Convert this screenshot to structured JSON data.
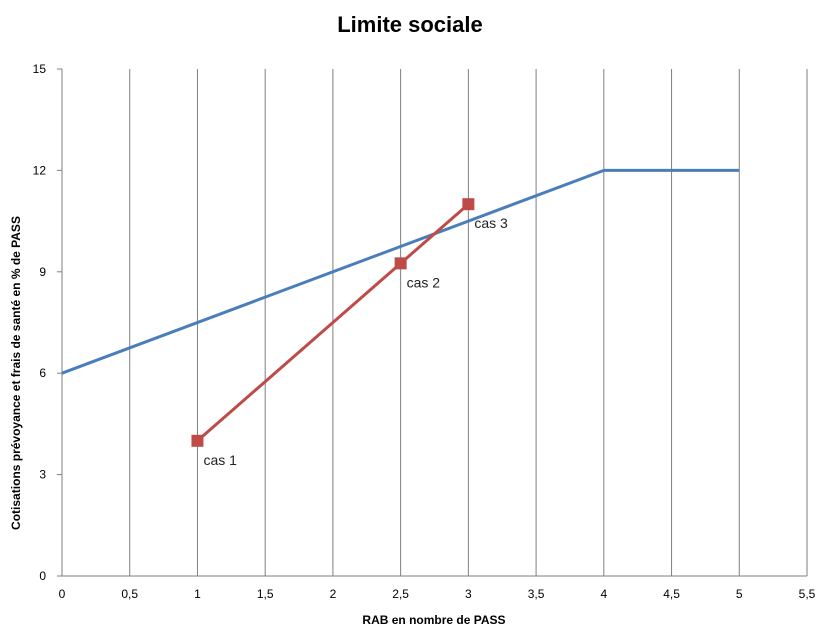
{
  "chart_data": {
    "type": "line",
    "title": "Limite sociale",
    "xlabel": "RAB en nombre de PASS",
    "ylabel": "Cotisations prévoyance et frais de santé en % de PASS",
    "xlim": [
      0,
      5.5
    ],
    "ylim": [
      0,
      15
    ],
    "x_ticks": [
      "0",
      "0,5",
      "1",
      "1,5",
      "2",
      "2,5",
      "3",
      "3,5",
      "4",
      "4,5",
      "5",
      "5,5"
    ],
    "y_ticks": [
      "0",
      "3",
      "6",
      "9",
      "12",
      "15"
    ],
    "grid": {
      "vertical": true,
      "horizontal": false
    },
    "series": [
      {
        "color": "#4a7ebb",
        "marker": "none",
        "points": [
          {
            "x": 0,
            "y": 6
          },
          {
            "x": 4,
            "y": 12
          },
          {
            "x": 5,
            "y": 12
          }
        ]
      },
      {
        "color": "#be4b48",
        "marker": "square",
        "points": [
          {
            "x": 1,
            "y": 4,
            "label": "cas 1"
          },
          {
            "x": 2.5,
            "y": 9.25,
            "label": "cas 2"
          },
          {
            "x": 3,
            "y": 11,
            "label": "cas 3"
          }
        ]
      }
    ]
  }
}
